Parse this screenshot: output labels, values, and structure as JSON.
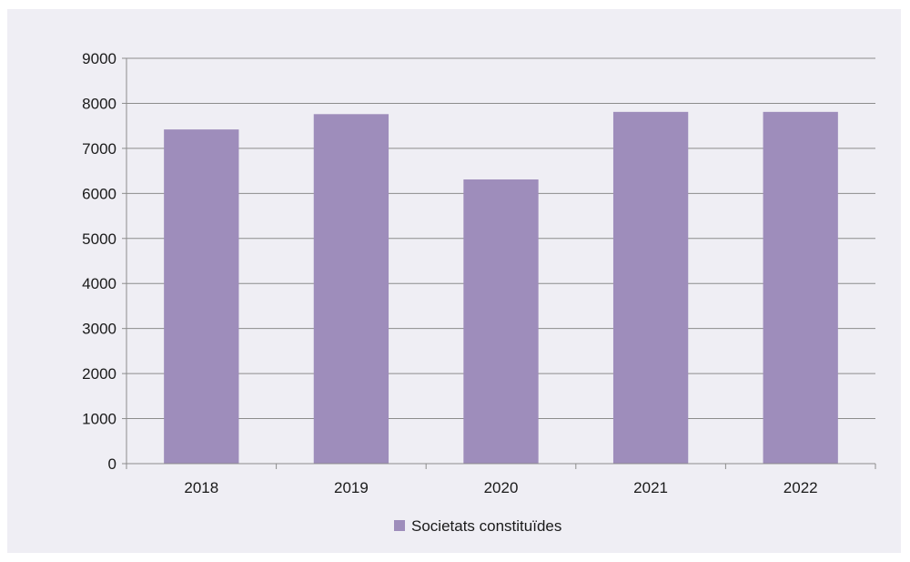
{
  "chart_data": {
    "type": "bar",
    "categories": [
      "2018",
      "2019",
      "2020",
      "2021",
      "2022"
    ],
    "series": [
      {
        "name": "Societats constituïdes",
        "values": [
          7420,
          7760,
          6310,
          7810,
          7810
        ]
      }
    ],
    "title": "",
    "xlabel": "",
    "ylabel": "",
    "ylim": [
      0,
      9000
    ],
    "yticks": [
      0,
      1000,
      2000,
      3000,
      4000,
      5000,
      6000,
      7000,
      8000,
      9000
    ],
    "grid": true,
    "legend": "bottom-center",
    "colors": {
      "bar": "#9e8dbb",
      "grid": "#8c8c8c",
      "background": "#efeef4"
    }
  }
}
